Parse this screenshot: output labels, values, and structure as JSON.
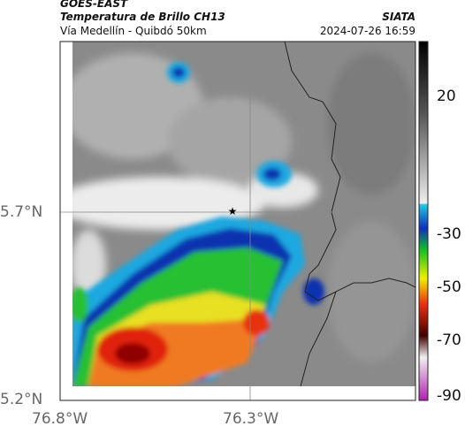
{
  "header": {
    "product": "GOES-EAST",
    "variable": "Temperatura de Brillo CH13",
    "location": "Vía Medellín - Quibdó 50km",
    "source": "SIATA",
    "datetime": "2024-07-26 16:59"
  },
  "axes": {
    "y_labels": [
      "5.7°N",
      "5.2°N"
    ],
    "x_labels": [
      "76.8°W",
      "76.3°W"
    ]
  },
  "colorbar": {
    "ticks": [
      "20",
      "-30",
      "-50",
      "-70",
      "-90"
    ]
  }
}
